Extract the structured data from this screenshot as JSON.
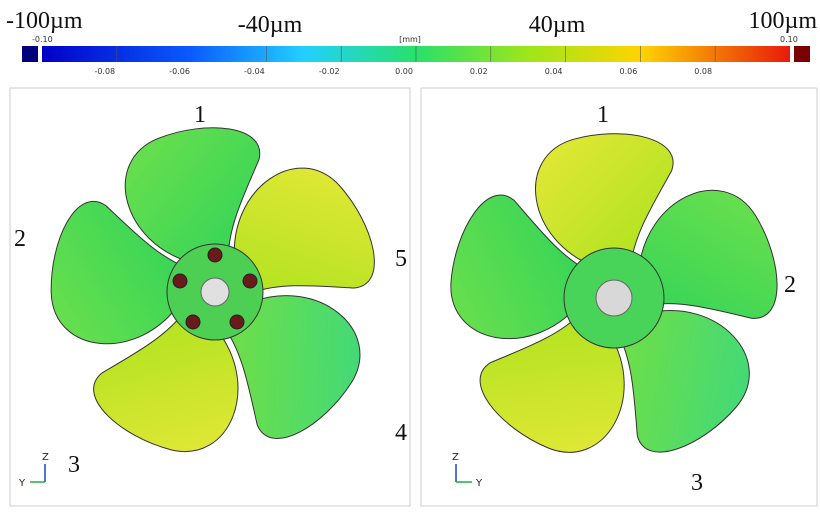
{
  "scale": {
    "headings": [
      "-100µm",
      "-40µm",
      "40µm",
      "100µm"
    ],
    "unit": "[mm]",
    "min_label": "-0.10",
    "max_label": "0.10",
    "ticks": [
      "-0.08",
      "-0.06",
      "-0.04",
      "-0.02",
      "0.00",
      "0.02",
      "0.04",
      "0.06",
      "0.08"
    ]
  },
  "left_panel": {
    "blade_labels": [
      "1",
      "2",
      "5",
      "4",
      "3"
    ],
    "axis_labels": [
      "Z",
      "Y"
    ]
  },
  "right_panel": {
    "blade_labels": [
      "1",
      "2",
      "3"
    ],
    "axis_labels": [
      "Z",
      "Y"
    ]
  }
}
